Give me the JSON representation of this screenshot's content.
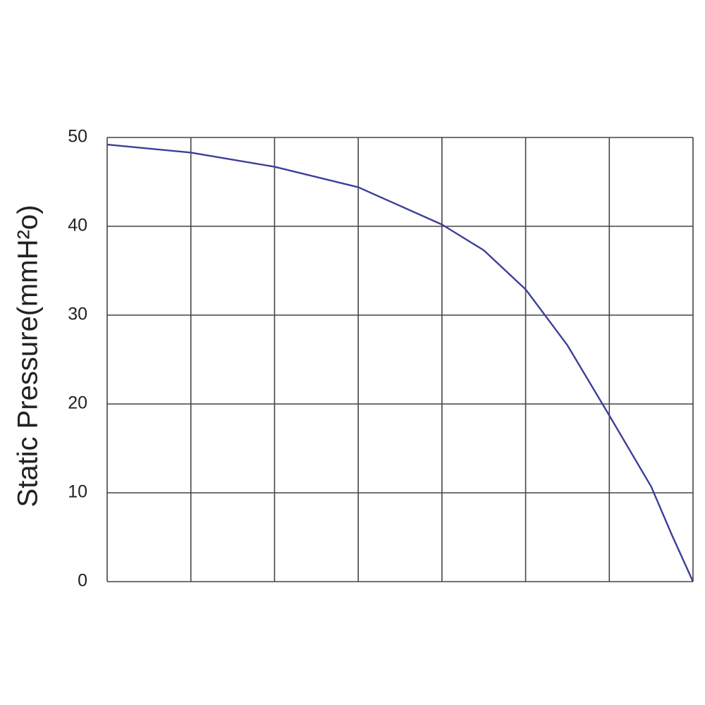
{
  "chart_data": {
    "type": "line",
    "y_label": "Static Pressure(mmH²o)",
    "x": [
      0,
      1,
      2,
      3,
      4,
      4.5,
      5,
      5.5,
      6,
      6.5,
      6.75,
      7
    ],
    "series": [
      {
        "color": "#3b3f98",
        "values": [
          49.2,
          48.3,
          46.7,
          44.4,
          40.2,
          37.3,
          32.9,
          26.6,
          18.7,
          10.7,
          5.2,
          0
        ]
      }
    ],
    "xlim": [
      0,
      7
    ],
    "ylim": [
      0,
      50
    ],
    "yticks": [
      0,
      10,
      20,
      30,
      40,
      50
    ],
    "grid": true
  }
}
